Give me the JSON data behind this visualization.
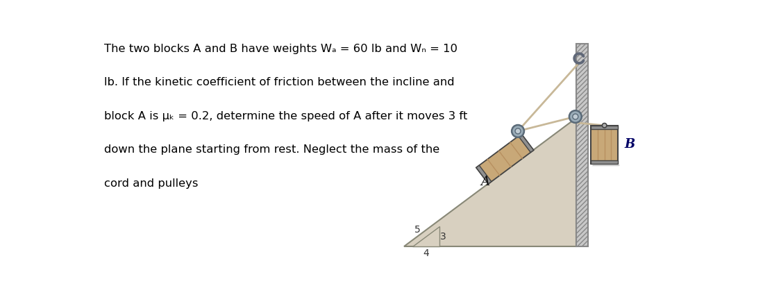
{
  "bg_color": "#ffffff",
  "text_color": "#000000",
  "problem_text_lines": [
    "The two blocks A and B have weights Wₐ = 60 lb and Wₙ = 10",
    "lb. If the kinetic coefficient of friction between the incline and",
    "block A is μₖ = 0.2, determine the speed of A after it moves 3 ft",
    "down the plane starting from rest. Neglect the mass of the",
    "cord and pulleys"
  ],
  "incline_fill": "#d8d0c0",
  "incline_edge": "#888877",
  "block_wood": "#c8a878",
  "block_stripe": "#b89060",
  "block_cap": "#909090",
  "block_edge": "#444444",
  "wall_fill": "#c8c8c8",
  "wall_hatch_color": "#888888",
  "cord_color": "#c8b898",
  "pulley_outer": "#9aacb8",
  "pulley_inner": "#c0ccd4",
  "pulley_edge": "#5a6a78",
  "hook_color": "#606878",
  "label_A_color": "#111111",
  "label_B_color": "#000066",
  "tri_nums": [
    "5",
    "3",
    "4"
  ],
  "figsize": [
    11.25,
    4.25
  ],
  "dpi": 100
}
